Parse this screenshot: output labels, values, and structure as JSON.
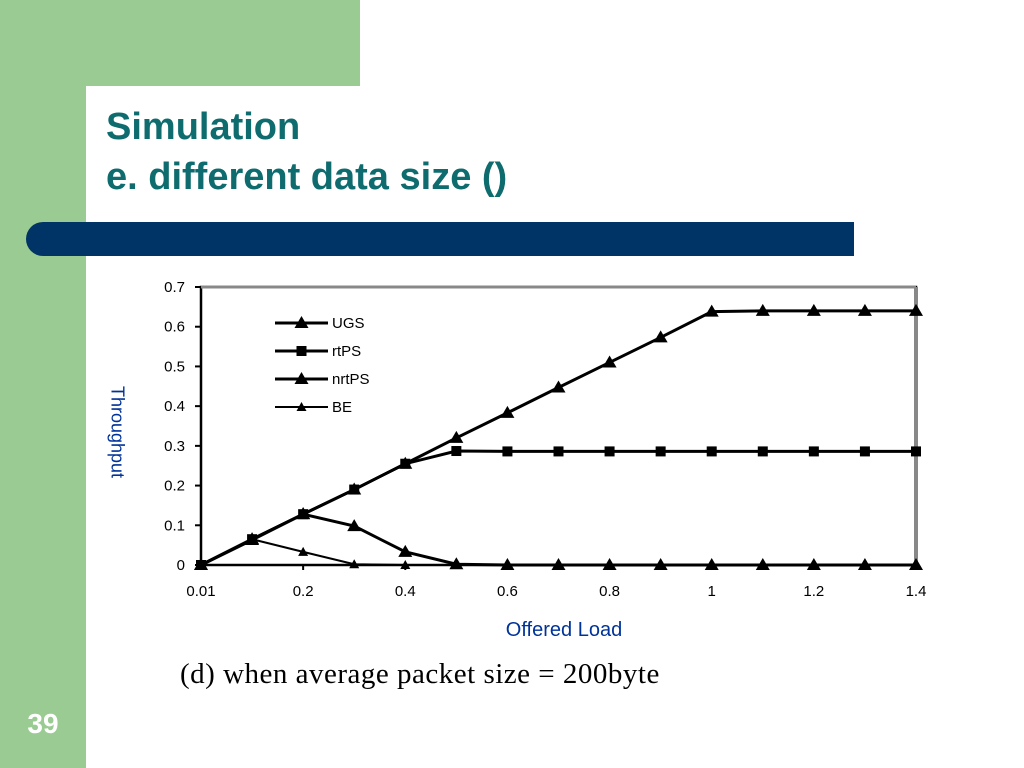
{
  "slide": {
    "title_line1": "Simulation",
    "title_line2": "e. different data size ()",
    "page_number": "39",
    "colors": {
      "green": "#9acb92",
      "title": "#0e6c6f",
      "bar": "#003466",
      "axis_label": "#003399"
    }
  },
  "chart_data": {
    "type": "line",
    "xlabel": "Offered Load",
    "ylabel": "Throughput",
    "caption": "(d) when average packet size = 200byte",
    "x_ticks": [
      "0.01",
      "0.2",
      "0.4",
      "0.6",
      "0.8",
      "1",
      "1.2",
      "1.4"
    ],
    "y_ticks": [
      "0",
      "0.1",
      "0.2",
      "0.3",
      "0.4",
      "0.5",
      "0.6",
      "0.7"
    ],
    "ylim": [
      0,
      0.7
    ],
    "xlim": [
      0,
      1.4
    ],
    "x": [
      0,
      0.1,
      0.2,
      0.3,
      0.4,
      0.5,
      0.6,
      0.7,
      0.8,
      0.9,
      1.0,
      1.1,
      1.2,
      1.3,
      1.4
    ],
    "series": [
      {
        "name": "UGS",
        "marker": "triangle",
        "values": [
          0,
          0.065,
          0.128,
          0.19,
          0.255,
          0.32,
          0.383,
          0.447,
          0.51,
          0.573,
          0.638,
          0.64,
          0.64,
          0.64,
          0.64
        ]
      },
      {
        "name": "rtPS",
        "marker": "square",
        "values": [
          0,
          0.065,
          0.128,
          0.19,
          0.255,
          0.287,
          0.286,
          0.286,
          0.286,
          0.286,
          0.286,
          0.286,
          0.286,
          0.286,
          0.286
        ]
      },
      {
        "name": "nrtPS",
        "marker": "triangle",
        "values": [
          0,
          0.063,
          0.128,
          0.098,
          0.033,
          0.002,
          0,
          0,
          0,
          0,
          0,
          0,
          0,
          0,
          0
        ]
      },
      {
        "name": "BE",
        "marker": "small-triangle",
        "values": [
          0,
          0.065,
          0.033,
          0.002,
          0,
          0,
          0,
          0,
          0,
          0,
          0,
          0,
          0,
          0,
          0
        ]
      }
    ],
    "legend": {
      "placement": "top-left"
    },
    "grid": false
  }
}
